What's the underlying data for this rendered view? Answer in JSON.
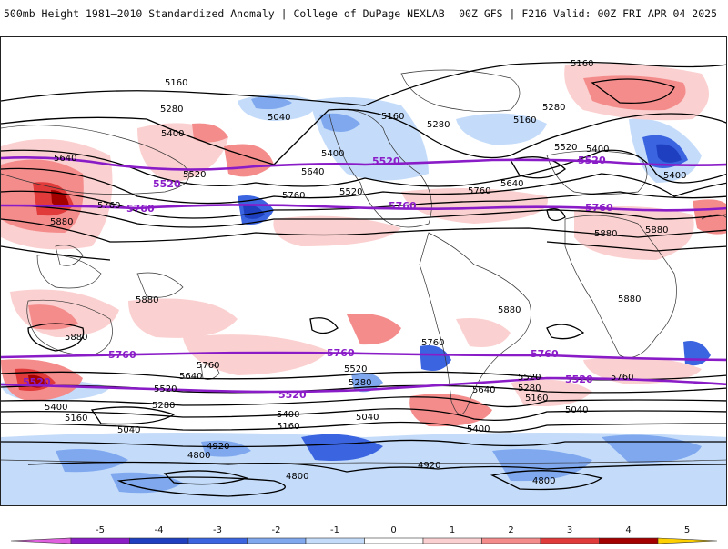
{
  "header": {
    "title": "500mb Height 1981–2010 Standardized Anomaly | College of DuPage NEXLAB",
    "run_info": "00Z GFS | F216 Valid: 00Z FRI APR 04 2025"
  },
  "map": {
    "projection": "global-cylindrical",
    "coastlines_color": "#333333",
    "contour_color": "#000000",
    "highlight_contour_color": "#8a1cc8",
    "contour_labels": [
      "5160",
      "5280",
      "5040",
      "5400",
      "5520",
      "5640",
      "5760",
      "5880",
      "4920",
      "4800"
    ],
    "highlight_labels": [
      "5520",
      "5760"
    ]
  },
  "colorbar": {
    "ticks": [
      "-5",
      "-4",
      "-3",
      "-2",
      "-1",
      "0",
      "1",
      "2",
      "3",
      "4",
      "5"
    ],
    "colors": [
      "#e060e0",
      "#8a1cc8",
      "#1e3fbf",
      "#3a64e0",
      "#7fa8ef",
      "#c4dcfa",
      "#ffffff",
      "#fbd0d0",
      "#f48c8c",
      "#e03a3a",
      "#a40000",
      "#ff9a00",
      "#ffd000"
    ]
  }
}
